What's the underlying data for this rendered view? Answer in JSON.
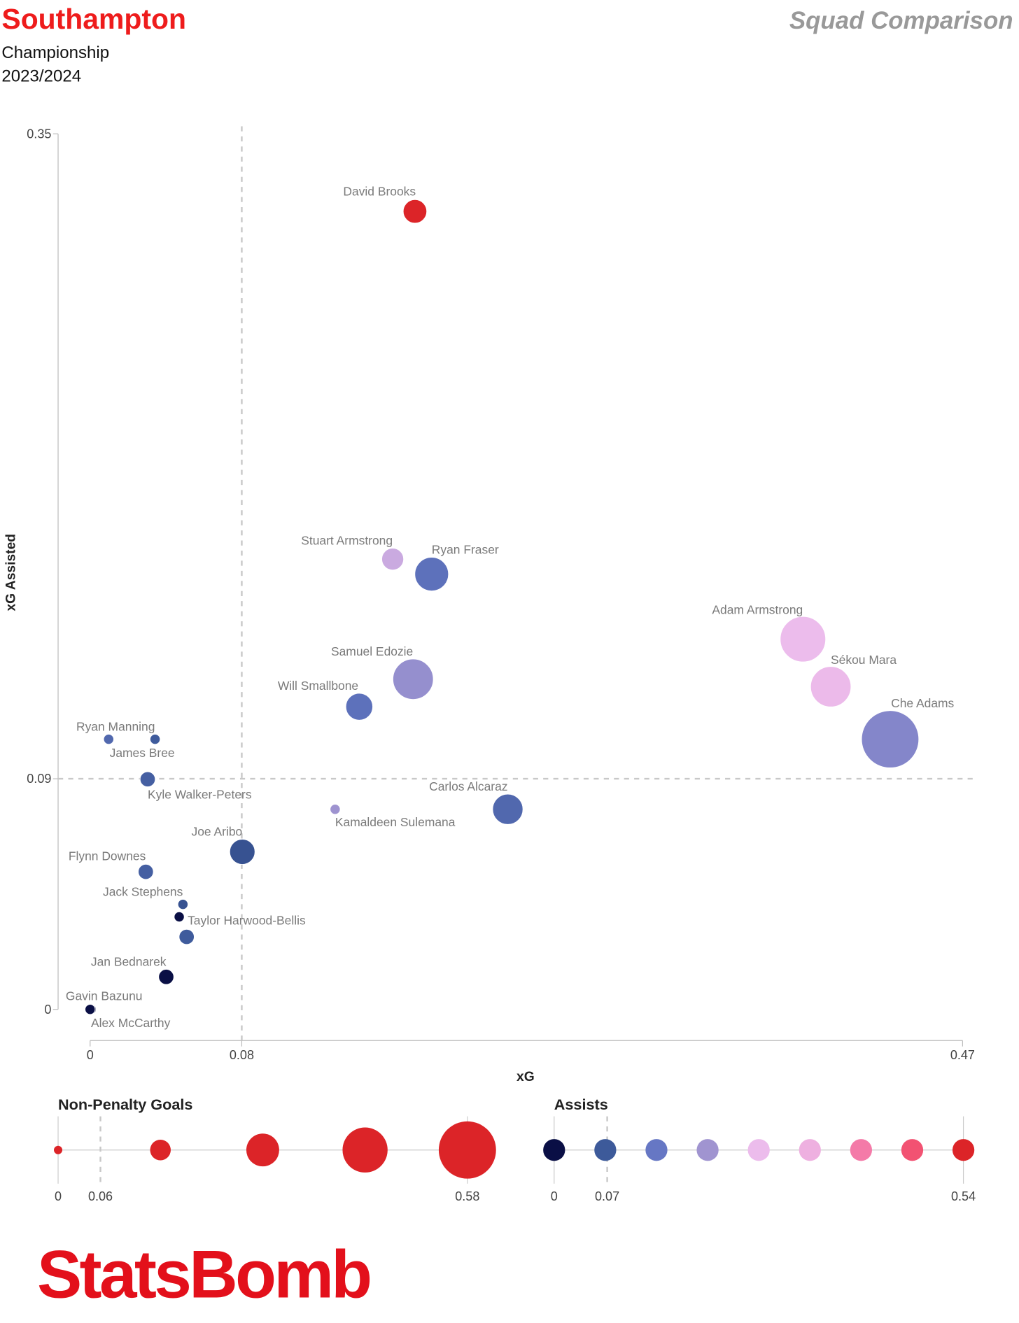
{
  "header": {
    "team": "Southampton",
    "competition": "Championship",
    "season": "2023/2024",
    "report_title": "Squad Comparison"
  },
  "logo_text": "StatsBomb",
  "chart_data": {
    "type": "scatter",
    "xlabel": "xG",
    "ylabel": "xG Assisted",
    "xlim": [
      0,
      0.47
    ],
    "ylim": [
      0,
      0.35
    ],
    "x_ticks": [
      {
        "value": 0,
        "label": "0"
      },
      {
        "value": 0.0817,
        "label": "0.08"
      },
      {
        "value": 0.47,
        "label": "0.47"
      }
    ],
    "y_ticks": [
      {
        "value": 0,
        "label": "0"
      },
      {
        "value": 0.0922,
        "label": "0.09"
      },
      {
        "value": 0.35,
        "label": "0.35"
      }
    ],
    "x_reference": 0.0817,
    "y_reference": 0.0922,
    "size_encoding": "Non-Penalty Goals",
    "color_encoding": "Assists",
    "points": [
      {
        "name": "David Brooks",
        "xg": 0.175,
        "xa": 0.319,
        "npg": 0.18,
        "assists": 0.54
      },
      {
        "name": "Stuart Armstrong",
        "xg": 0.163,
        "xa": 0.18,
        "npg": 0.16,
        "assists": 0.24
      },
      {
        "name": "Ryan Fraser",
        "xg": 0.184,
        "xa": 0.174,
        "npg": 0.3,
        "assists": 0.12
      },
      {
        "name": "Adam Armstrong",
        "xg": 0.384,
        "xa": 0.148,
        "npg": 0.44,
        "assists": 0.27
      },
      {
        "name": "Sékou Mara",
        "xg": 0.399,
        "xa": 0.129,
        "npg": 0.38,
        "assists": 0.28
      },
      {
        "name": "Che Adams",
        "xg": 0.431,
        "xa": 0.108,
        "npg": 0.58,
        "assists": 0.17
      },
      {
        "name": "Samuel Edozie",
        "xg": 0.174,
        "xa": 0.132,
        "npg": 0.38,
        "assists": 0.19
      },
      {
        "name": "Will Smallbone",
        "xg": 0.145,
        "xa": 0.121,
        "npg": 0.22,
        "assists": 0.12
      },
      {
        "name": "Ryan Manning",
        "xg": 0.01,
        "xa": 0.108,
        "npg": 0.02,
        "assists": 0.1
      },
      {
        "name": "James Bree",
        "xg": 0.035,
        "xa": 0.108,
        "npg": 0.02,
        "assists": 0.07
      },
      {
        "name": "Kyle Walker-Peters",
        "xg": 0.031,
        "xa": 0.092,
        "npg": 0.08,
        "assists": 0.08
      },
      {
        "name": "Kamaldeen Sulemana",
        "xg": 0.132,
        "xa": 0.08,
        "npg": 0.02,
        "assists": 0.2
      },
      {
        "name": "Carlos Alcaraz",
        "xg": 0.225,
        "xa": 0.08,
        "npg": 0.26,
        "assists": 0.1
      },
      {
        "name": "Joe Aribo",
        "xg": 0.082,
        "xa": 0.063,
        "npg": 0.2,
        "assists": 0.06
      },
      {
        "name": "Flynn Downes",
        "xg": 0.03,
        "xa": 0.055,
        "npg": 0.08,
        "assists": 0.08
      },
      {
        "name": "Jack Stephens",
        "xg": 0.05,
        "xa": 0.042,
        "npg": 0.02,
        "assists": 0.06
      },
      {
        "name": "Taylor Harwood-Bellis",
        "xg": 0.048,
        "xa": 0.037,
        "npg": 0.02,
        "assists": 0.0
      },
      {
        "name": "",
        "xg": 0.052,
        "xa": 0.029,
        "npg": 0.08,
        "assists": 0.07
      },
      {
        "name": "Jan Bednarek",
        "xg": 0.041,
        "xa": 0.013,
        "npg": 0.08,
        "assists": 0.0
      },
      {
        "name": "Gavin Bazunu",
        "xg": 0.0005,
        "xa": 0.0,
        "npg": 0.02,
        "assists": 0.0
      },
      {
        "name": "Alex McCarthy",
        "xg": 0.0,
        "xa": 0.0,
        "npg": 0.02,
        "assists": 0.0
      }
    ],
    "legend_size": {
      "title": "Non-Penalty Goals",
      "min": 0,
      "mean": 0.06,
      "max": 0.58,
      "labels": {
        "min": "0",
        "mean": "0.06",
        "max": "0.58"
      },
      "steps": [
        0,
        0.145,
        0.29,
        0.435,
        0.58
      ],
      "color": "#dc2428"
    },
    "legend_color": {
      "title": "Assists",
      "min": 0,
      "mean": 0.07,
      "max": 0.54,
      "labels": {
        "min": "0",
        "mean": "0.07",
        "max": "0.54"
      },
      "colors": [
        "#0a0f45",
        "#3d5a9a",
        "#6677c4",
        "#a094d0",
        "#ecbcec",
        "#eeb0e0",
        "#f47aa8",
        "#f25272",
        "#dc2428"
      ]
    }
  }
}
